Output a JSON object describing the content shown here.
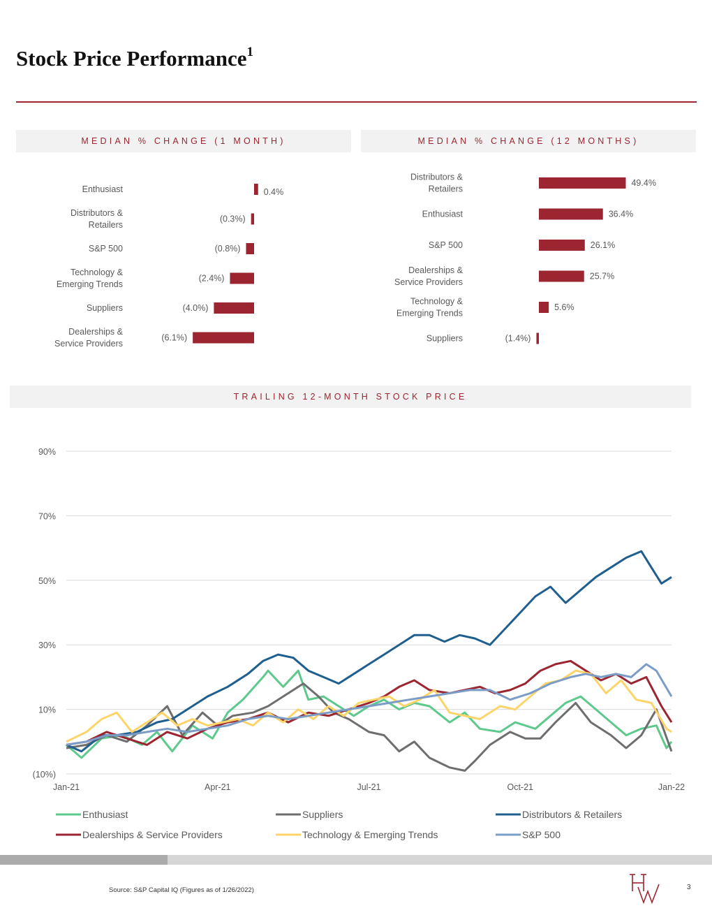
{
  "page": {
    "title": "Stock Price Performance",
    "title_sup": "1",
    "source": "Source: S&P Capital IQ (Figures as of 1/26/2022)",
    "page_number": "3",
    "logo": "HW",
    "accent_color": "#9b2530"
  },
  "chart_data": [
    {
      "type": "bar",
      "orientation": "horizontal",
      "title": "MEDIAN % CHANGE (1 MONTH)",
      "categories": [
        [
          "Enthusiast"
        ],
        [
          "Distributors &",
          "Retailers"
        ],
        [
          "S&P 500"
        ],
        [
          "Technology &",
          "Emerging Trends"
        ],
        [
          "Suppliers"
        ],
        [
          "Dealerships &",
          "Service Providers"
        ]
      ],
      "values": [
        0.4,
        -0.3,
        -0.8,
        -2.4,
        -4.0,
        -6.1
      ],
      "value_labels": [
        "0.4%",
        "(0.3%)",
        "(0.8%)",
        "(2.4%)",
        "(4.0%)",
        "(6.1%)"
      ],
      "color": "#9b2530"
    },
    {
      "type": "bar",
      "orientation": "horizontal",
      "title": "MEDIAN % CHANGE (12 MONTHS)",
      "categories": [
        [
          "Distributors &",
          "Retailers"
        ],
        [
          "Enthusiast"
        ],
        [
          "S&P 500"
        ],
        [
          "Dealerships &",
          "Service Providers"
        ],
        [
          "Technology &",
          "Emerging Trends"
        ],
        [
          "Suppliers"
        ]
      ],
      "values": [
        49.4,
        36.4,
        26.1,
        25.7,
        5.6,
        -1.4
      ],
      "value_labels": [
        "49.4%",
        "36.4%",
        "26.1%",
        "25.7%",
        "5.6%",
        "(1.4%)"
      ],
      "color": "#9b2530"
    },
    {
      "type": "line",
      "title": "TRAILING 12-MONTH STOCK PRICE",
      "x_ticks": [
        "Jan-21",
        "Apr-21",
        "Jul-21",
        "Oct-21",
        "Jan-22"
      ],
      "y_ticks": [
        "(10%)",
        "10%",
        "30%",
        "50%",
        "70%",
        "90%"
      ],
      "y_tick_values": [
        -10,
        10,
        30,
        50,
        70,
        90
      ],
      "ylim": [
        -10,
        90
      ],
      "x_month_range": [
        0,
        12
      ],
      "grid": true,
      "legend_position": "bottom",
      "series": [
        {
          "name": "Enthusiast",
          "color": "#5ec98c",
          "points": [
            [
              0,
              -1
            ],
            [
              0.3,
              -5
            ],
            [
              0.7,
              1
            ],
            [
              1.1,
              2
            ],
            [
              1.5,
              -1
            ],
            [
              1.8,
              3
            ],
            [
              2.1,
              -3
            ],
            [
              2.5,
              5
            ],
            [
              2.9,
              1
            ],
            [
              3.2,
              9
            ],
            [
              3.5,
              13
            ],
            [
              3.9,
              20
            ],
            [
              4.0,
              22
            ],
            [
              4.3,
              17
            ],
            [
              4.6,
              22
            ],
            [
              4.8,
              13
            ],
            [
              5.1,
              14
            ],
            [
              5.4,
              11
            ],
            [
              5.7,
              8
            ],
            [
              6.0,
              11
            ],
            [
              6.3,
              13
            ],
            [
              6.6,
              10
            ],
            [
              6.9,
              12
            ],
            [
              7.2,
              11
            ],
            [
              7.6,
              6
            ],
            [
              7.9,
              9
            ],
            [
              8.2,
              4
            ],
            [
              8.6,
              3
            ],
            [
              8.9,
              6
            ],
            [
              9.3,
              4
            ],
            [
              9.6,
              8
            ],
            [
              9.9,
              12
            ],
            [
              10.2,
              14
            ],
            [
              10.5,
              10
            ],
            [
              10.8,
              6
            ],
            [
              11.1,
              2
            ],
            [
              11.4,
              4
            ],
            [
              11.7,
              5
            ],
            [
              11.9,
              -2
            ],
            [
              12,
              0
            ]
          ]
        },
        {
          "name": "Suppliers",
          "color": "#6e6e6e",
          "points": [
            [
              0,
              -2
            ],
            [
              0.4,
              -1
            ],
            [
              0.8,
              2
            ],
            [
              1.2,
              0
            ],
            [
              1.6,
              5
            ],
            [
              2.0,
              11
            ],
            [
              2.3,
              2
            ],
            [
              2.7,
              9
            ],
            [
              3.0,
              5
            ],
            [
              3.3,
              8
            ],
            [
              3.7,
              9
            ],
            [
              4.0,
              11
            ],
            [
              4.4,
              15
            ],
            [
              4.7,
              18
            ],
            [
              5.0,
              14
            ],
            [
              5.3,
              9
            ],
            [
              5.6,
              7
            ],
            [
              6.0,
              3
            ],
            [
              6.3,
              2
            ],
            [
              6.6,
              -3
            ],
            [
              6.9,
              0
            ],
            [
              7.2,
              -5
            ],
            [
              7.6,
              -8
            ],
            [
              7.9,
              -9
            ],
            [
              8.1,
              -6
            ],
            [
              8.4,
              -1
            ],
            [
              8.8,
              3
            ],
            [
              9.1,
              1
            ],
            [
              9.4,
              1
            ],
            [
              9.7,
              6
            ],
            [
              10.1,
              12
            ],
            [
              10.4,
              6
            ],
            [
              10.8,
              2
            ],
            [
              11.1,
              -2
            ],
            [
              11.4,
              2
            ],
            [
              11.7,
              10
            ],
            [
              12,
              -3
            ]
          ]
        },
        {
          "name": "Distributors & Retailers",
          "color": "#1f5f8f",
          "points": [
            [
              0,
              -1
            ],
            [
              0.3,
              -3
            ],
            [
              0.7,
              2
            ],
            [
              1.0,
              2
            ],
            [
              1.4,
              3
            ],
            [
              1.8,
              6
            ],
            [
              2.1,
              7
            ],
            [
              2.5,
              11
            ],
            [
              2.8,
              14
            ],
            [
              3.2,
              17
            ],
            [
              3.6,
              21
            ],
            [
              3.9,
              25
            ],
            [
              4.2,
              27
            ],
            [
              4.5,
              26
            ],
            [
              4.8,
              22
            ],
            [
              5.1,
              20
            ],
            [
              5.4,
              18
            ],
            [
              5.7,
              21
            ],
            [
              6.0,
              24
            ],
            [
              6.3,
              27
            ],
            [
              6.6,
              30
            ],
            [
              6.9,
              33
            ],
            [
              7.2,
              33
            ],
            [
              7.5,
              31
            ],
            [
              7.8,
              33
            ],
            [
              8.1,
              32
            ],
            [
              8.4,
              30
            ],
            [
              8.7,
              35
            ],
            [
              9.0,
              40
            ],
            [
              9.3,
              45
            ],
            [
              9.6,
              48
            ],
            [
              9.9,
              43
            ],
            [
              10.2,
              47
            ],
            [
              10.5,
              51
            ],
            [
              10.8,
              54
            ],
            [
              11.1,
              57
            ],
            [
              11.4,
              59
            ],
            [
              11.6,
              54
            ],
            [
              11.8,
              49
            ],
            [
              12,
              51
            ]
          ]
        },
        {
          "name": "Dealerships & Service Providers",
          "color": "#9b2530",
          "points": [
            [
              0,
              -1
            ],
            [
              0.4,
              0
            ],
            [
              0.8,
              3
            ],
            [
              1.2,
              1
            ],
            [
              1.6,
              -1
            ],
            [
              2.0,
              3
            ],
            [
              2.4,
              1
            ],
            [
              2.8,
              4
            ],
            [
              3.2,
              6
            ],
            [
              3.6,
              7
            ],
            [
              4.0,
              9
            ],
            [
              4.4,
              6
            ],
            [
              4.8,
              9
            ],
            [
              5.2,
              8
            ],
            [
              5.6,
              10
            ],
            [
              6.0,
              12
            ],
            [
              6.3,
              14
            ],
            [
              6.6,
              17
            ],
            [
              6.9,
              19
            ],
            [
              7.2,
              16
            ],
            [
              7.6,
              15
            ],
            [
              7.9,
              16
            ],
            [
              8.2,
              17
            ],
            [
              8.5,
              15
            ],
            [
              8.8,
              16
            ],
            [
              9.1,
              18
            ],
            [
              9.4,
              22
            ],
            [
              9.7,
              24
            ],
            [
              10.0,
              25
            ],
            [
              10.3,
              22
            ],
            [
              10.6,
              19
            ],
            [
              10.9,
              21
            ],
            [
              11.2,
              18
            ],
            [
              11.5,
              20
            ],
            [
              11.8,
              11
            ],
            [
              12,
              6
            ]
          ]
        },
        {
          "name": "Technology & Emerging Trends",
          "color": "#fdd46a",
          "points": [
            [
              0,
              0
            ],
            [
              0.4,
              3
            ],
            [
              0.7,
              7
            ],
            [
              1.0,
              9
            ],
            [
              1.3,
              3
            ],
            [
              1.6,
              6
            ],
            [
              1.9,
              9
            ],
            [
              2.2,
              5
            ],
            [
              2.5,
              7
            ],
            [
              2.8,
              5
            ],
            [
              3.1,
              6
            ],
            [
              3.4,
              7
            ],
            [
              3.7,
              5
            ],
            [
              4.0,
              9
            ],
            [
              4.3,
              6
            ],
            [
              4.6,
              10
            ],
            [
              4.9,
              7
            ],
            [
              5.2,
              11
            ],
            [
              5.5,
              8
            ],
            [
              5.8,
              12
            ],
            [
              6.1,
              13
            ],
            [
              6.4,
              14
            ],
            [
              6.7,
              11
            ],
            [
              7.0,
              13
            ],
            [
              7.3,
              16
            ],
            [
              7.6,
              9
            ],
            [
              7.9,
              8
            ],
            [
              8.2,
              7
            ],
            [
              8.6,
              11
            ],
            [
              8.9,
              10
            ],
            [
              9.2,
              14
            ],
            [
              9.5,
              18
            ],
            [
              9.8,
              19
            ],
            [
              10.1,
              22
            ],
            [
              10.4,
              21
            ],
            [
              10.7,
              15
            ],
            [
              11.0,
              19
            ],
            [
              11.3,
              13
            ],
            [
              11.6,
              12
            ],
            [
              11.9,
              4
            ],
            [
              12,
              3
            ]
          ]
        },
        {
          "name": "S&P 500",
          "color": "#7a9cc7",
          "points": [
            [
              0,
              -1
            ],
            [
              0.4,
              0
            ],
            [
              0.8,
              2
            ],
            [
              1.2,
              2
            ],
            [
              1.6,
              3
            ],
            [
              2.0,
              4
            ],
            [
              2.4,
              3
            ],
            [
              2.8,
              4
            ],
            [
              3.2,
              5
            ],
            [
              3.6,
              7
            ],
            [
              4.0,
              8
            ],
            [
              4.4,
              7
            ],
            [
              4.8,
              8
            ],
            [
              5.2,
              9
            ],
            [
              5.6,
              10
            ],
            [
              6.0,
              11
            ],
            [
              6.4,
              12
            ],
            [
              6.8,
              13
            ],
            [
              7.2,
              14
            ],
            [
              7.6,
              15
            ],
            [
              8.0,
              16
            ],
            [
              8.4,
              16
            ],
            [
              8.8,
              13
            ],
            [
              9.2,
              15
            ],
            [
              9.6,
              18
            ],
            [
              10.0,
              20
            ],
            [
              10.3,
              21
            ],
            [
              10.6,
              20
            ],
            [
              10.9,
              21
            ],
            [
              11.2,
              20
            ],
            [
              11.5,
              24
            ],
            [
              11.7,
              22
            ],
            [
              12,
              14
            ]
          ]
        }
      ]
    }
  ]
}
